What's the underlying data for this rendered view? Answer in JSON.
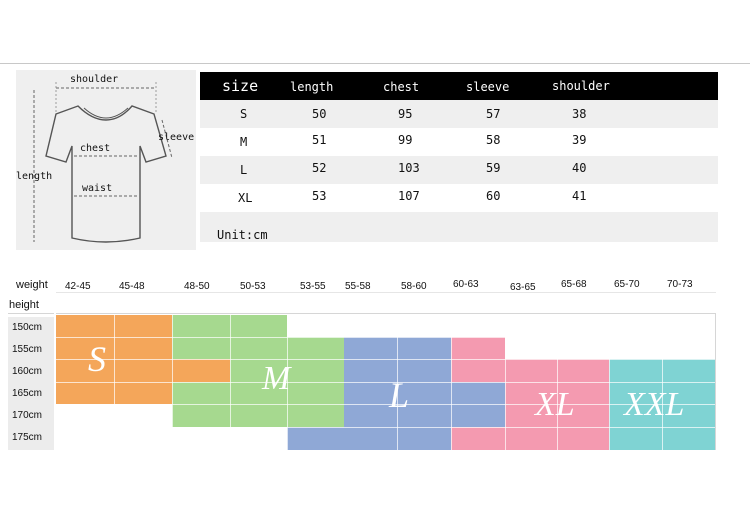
{
  "table": {
    "headers": [
      "size",
      "length",
      "chest",
      "sleeve",
      "shoulder"
    ],
    "rows": [
      [
        "S",
        "50",
        "95",
        "57",
        "38"
      ],
      [
        "M",
        "51",
        "99",
        "58",
        "39"
      ],
      [
        "L",
        "52",
        "103",
        "59",
        "40"
      ],
      [
        "XL",
        "53",
        "107",
        "60",
        "41"
      ]
    ],
    "unit": "Unit:cm"
  },
  "diagram": {
    "shoulder": "shoulder",
    "sleeve": "sleeve",
    "chest": "chest",
    "waist": "waist",
    "length": "length"
  },
  "chart": {
    "weight_label": "weight",
    "height_label": "height",
    "weights": [
      "42-45",
      "45-48",
      "48-50",
      "50-53",
      "53-55",
      "55-58",
      "58-60",
      "60-63",
      "63-65",
      "65-68",
      "65-70",
      "70-73"
    ],
    "heights": [
      "150cm",
      "155cm",
      "160cm",
      "165cm",
      "170cm",
      "175cm"
    ],
    "sizes": [
      {
        "label": "S",
        "color": "#f4a65a"
      },
      {
        "label": "M",
        "color": "#a6d98f"
      },
      {
        "label": "L",
        "color": "#8fa8d6"
      },
      {
        "label": "XL",
        "color": "#f49ab0"
      },
      {
        "label": "XXL",
        "color": "#7fd3d3"
      }
    ]
  }
}
